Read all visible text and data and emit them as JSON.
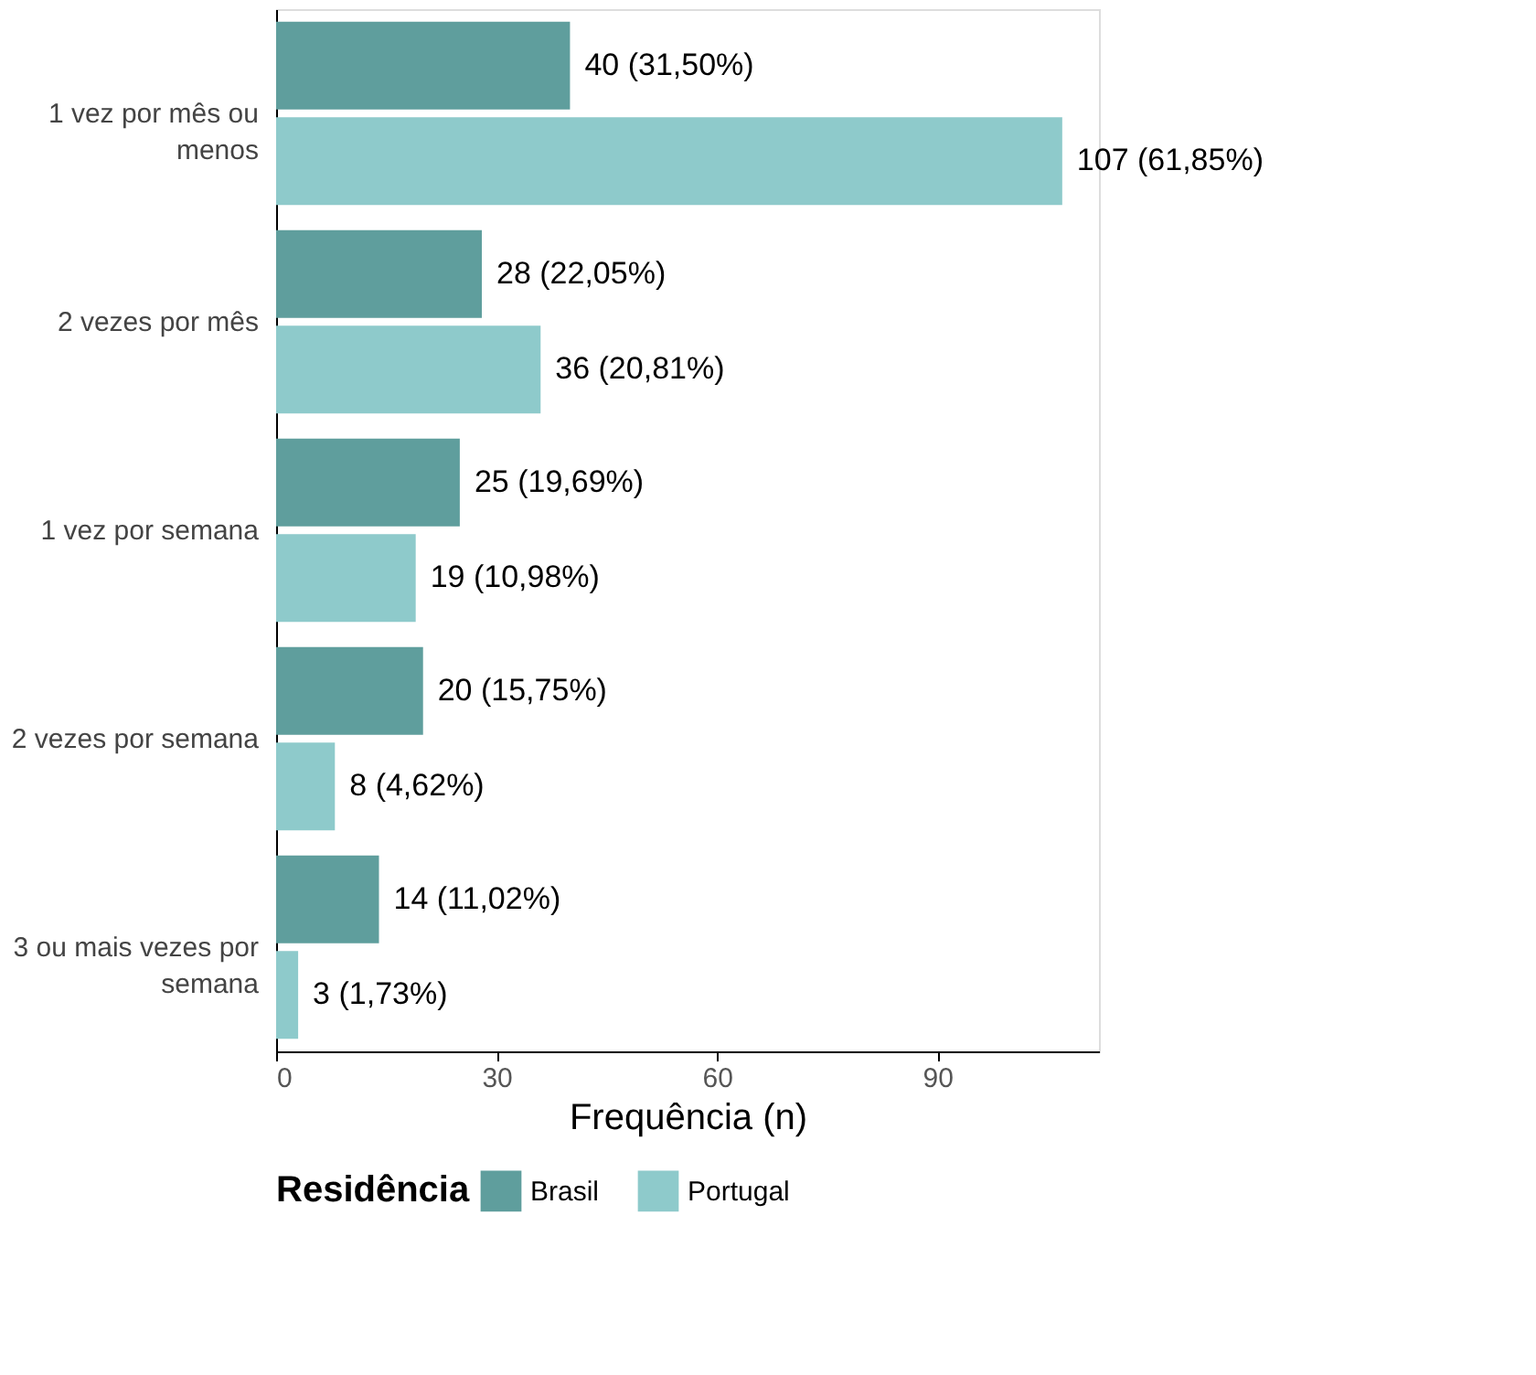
{
  "chart_data": {
    "type": "bar",
    "orientation": "horizontal",
    "xlabel": "Frequência (n)",
    "legend_title": "Residência",
    "legend": "bottom",
    "categories": [
      "1 vez por mês ou menos",
      "2 vezes por mês",
      "1 vez por semana",
      "2 vezes por semana",
      "3 ou mais vezes por semana"
    ],
    "series": [
      {
        "name": "Brasil",
        "color": "#5f9e9d",
        "values": [
          40,
          28,
          25,
          20,
          14
        ],
        "value_labels": [
          "40 (31,50%)",
          "28 (22,05%)",
          "25 (19,69%)",
          "20 (15,75%)",
          "14 (11,02%)"
        ]
      },
      {
        "name": "Portugal",
        "color": "#8ecacb",
        "values": [
          107,
          36,
          19,
          8,
          3
        ],
        "value_labels": [
          "107 (61,85%)",
          "36 (20,81%)",
          "19 (10,98%)",
          "8 (4,62%)",
          "3 (1,73%)"
        ]
      }
    ],
    "xlim": [
      0,
      112
    ],
    "xticks": [
      0,
      30,
      60,
      90
    ],
    "grid": false
  }
}
